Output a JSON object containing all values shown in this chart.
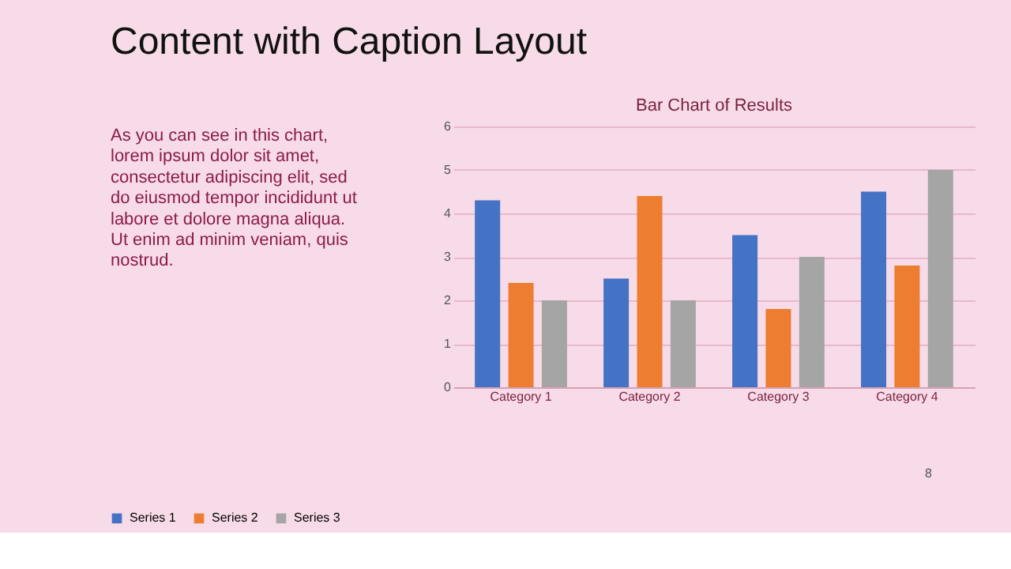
{
  "chart_data": {
    "type": "bar",
    "title": "Bar Chart of Results",
    "categories": [
      "Category 1",
      "Category 2",
      "Category 3",
      "Category 4"
    ],
    "series": [
      {
        "name": "Series 1",
        "color": "#4472c4",
        "values": [
          4.3,
          2.5,
          3.5,
          4.5
        ]
      },
      {
        "name": "Series 2",
        "color": "#ed7d31",
        "values": [
          2.4,
          4.4,
          1.8,
          2.8
        ]
      },
      {
        "name": "Series 3",
        "color": "#a5a5a5",
        "values": [
          2,
          2,
          3,
          5
        ]
      }
    ],
    "ylim": [
      0,
      6
    ],
    "yticks": [
      0,
      1,
      2,
      3,
      4,
      5,
      6
    ],
    "grid": "y",
    "legend": "bottom",
    "annotations": [
      "Content with Caption Layout",
      "As you can see in this chart, lorem ipsum dolor sit amet, consectetur adipiscing elit, sed do eiusmod tempor incididunt ut labore et dolore magna aliqua. Ut enim ad minim veniam, quis nostrud.",
      "8"
    ]
  }
}
